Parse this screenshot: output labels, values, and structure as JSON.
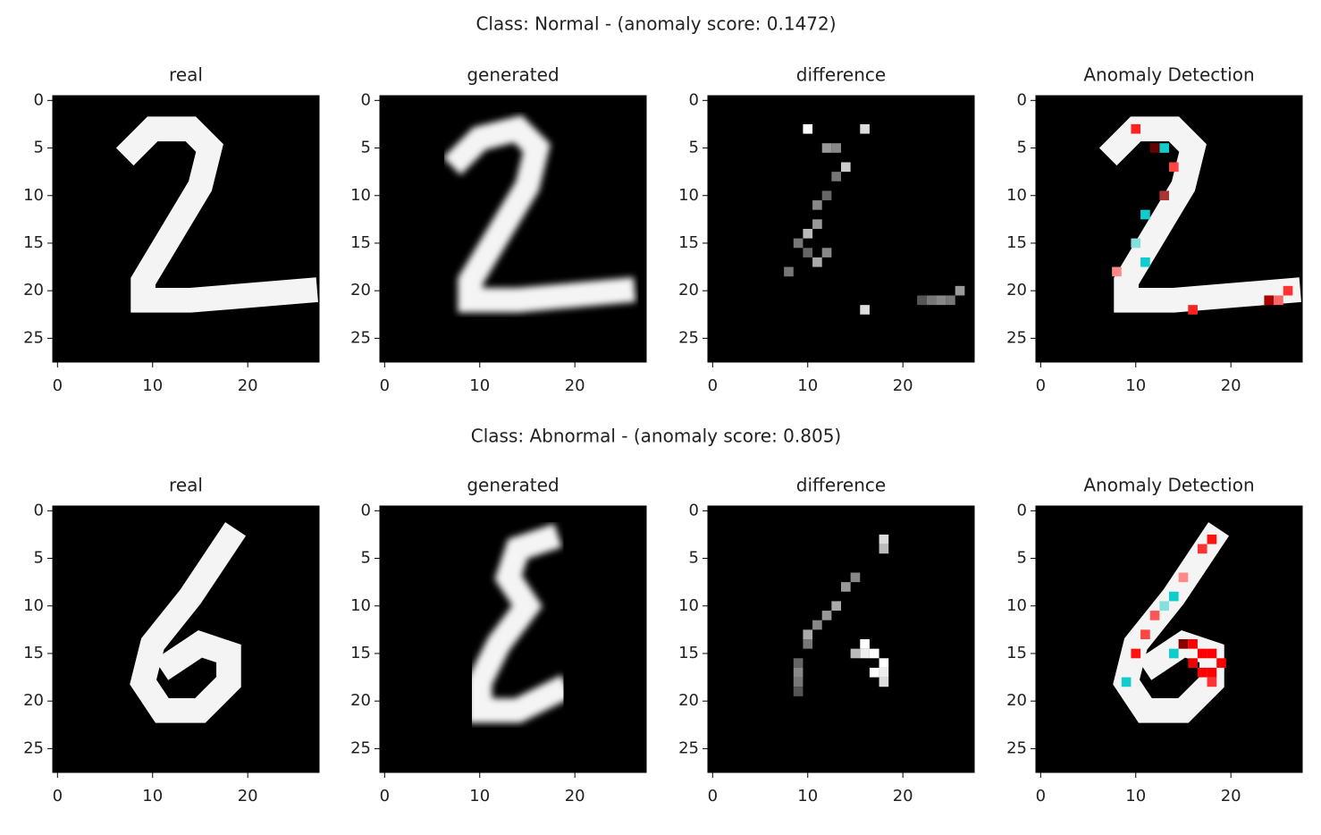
{
  "figure": {
    "row_titles": [
      "Class: Normal - (anomaly score: 0.1472)",
      "Class: Abnormal - (anomaly score: 0.805)"
    ]
  },
  "chart_data": [
    {
      "type": "image",
      "title": "real",
      "xlim": [
        -0.5,
        27.5
      ],
      "ylim": [
        27.5,
        -0.5
      ],
      "xticks": [
        0,
        10,
        20
      ],
      "yticks": [
        0,
        5,
        10,
        15,
        20,
        25
      ]
    },
    {
      "type": "image",
      "title": "generated",
      "xlim": [
        -0.5,
        27.5
      ],
      "ylim": [
        27.5,
        -0.5
      ],
      "xticks": [
        0,
        10,
        20
      ],
      "yticks": [
        0,
        5,
        10,
        15,
        20,
        25
      ]
    },
    {
      "type": "image",
      "title": "difference",
      "xlim": [
        -0.5,
        27.5
      ],
      "ylim": [
        27.5,
        -0.5
      ],
      "xticks": [
        0,
        10,
        20
      ],
      "yticks": [
        0,
        5,
        10,
        15,
        20,
        25
      ]
    },
    {
      "type": "image",
      "title": "Anomaly Detection",
      "xlim": [
        -0.5,
        27.5
      ],
      "ylim": [
        27.5,
        -0.5
      ],
      "xticks": [
        0,
        10,
        20
      ],
      "yticks": [
        0,
        5,
        10,
        15,
        20,
        25
      ]
    },
    {
      "type": "image",
      "title": "real",
      "xlim": [
        -0.5,
        27.5
      ],
      "ylim": [
        27.5,
        -0.5
      ],
      "xticks": [
        0,
        10,
        20
      ],
      "yticks": [
        0,
        5,
        10,
        15,
        20,
        25
      ]
    },
    {
      "type": "image",
      "title": "generated",
      "xlim": [
        -0.5,
        27.5
      ],
      "ylim": [
        27.5,
        -0.5
      ],
      "xticks": [
        0,
        10,
        20
      ],
      "yticks": [
        0,
        5,
        10,
        15,
        20,
        25
      ]
    },
    {
      "type": "image",
      "title": "difference",
      "xlim": [
        -0.5,
        27.5
      ],
      "ylim": [
        27.5,
        -0.5
      ],
      "xticks": [
        0,
        10,
        20
      ],
      "yticks": [
        0,
        5,
        10,
        15,
        20,
        25
      ]
    },
    {
      "type": "image",
      "title": "Anomaly Detection",
      "xlim": [
        -0.5,
        27.5
      ],
      "ylim": [
        27.5,
        -0.5
      ],
      "xticks": [
        0,
        10,
        20
      ],
      "yticks": [
        0,
        5,
        10,
        15,
        20,
        25
      ]
    }
  ]
}
